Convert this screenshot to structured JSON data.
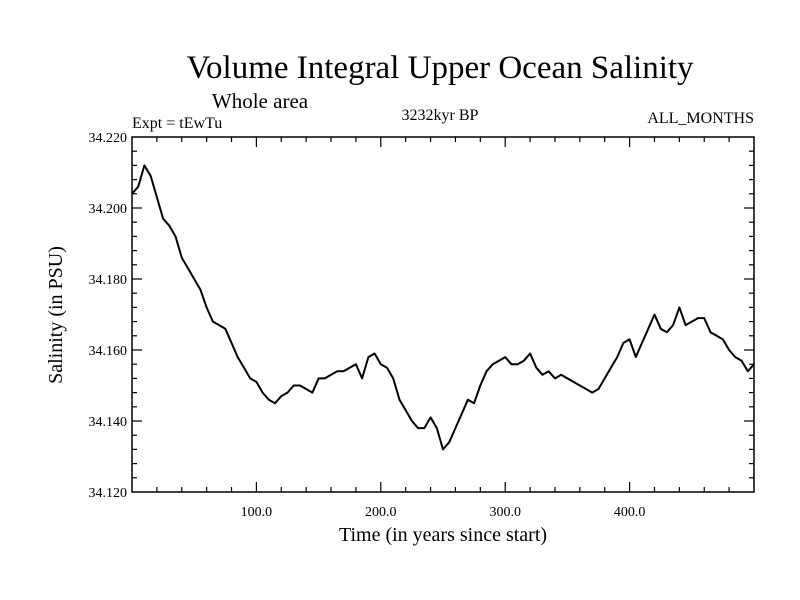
{
  "chart_data": {
    "type": "line",
    "title": "Volume Integral Upper Ocean Salinity",
    "subtitle": "Whole area",
    "experiment": "Expt = tEwTu",
    "period": "3232kyr BP",
    "months": "ALL_MONTHS",
    "xlabel": "Time (in years since start)",
    "ylabel": "Salinity (in PSU)",
    "xlim": [
      0,
      500
    ],
    "ylim": [
      34.12,
      34.22
    ],
    "x_ticks": [
      100,
      200,
      300,
      400
    ],
    "x_tick_labels": [
      "100.0",
      "200.0",
      "300.0",
      "400.0"
    ],
    "y_ticks": [
      34.12,
      34.14,
      34.16,
      34.18,
      34.2,
      34.22
    ],
    "y_tick_labels": [
      "34.120",
      "34.140",
      "34.160",
      "34.180",
      "34.200",
      "34.220"
    ],
    "series": [
      {
        "name": "salinity",
        "x": [
          0,
          5,
          10,
          15,
          20,
          25,
          30,
          35,
          40,
          45,
          50,
          55,
          60,
          65,
          70,
          75,
          80,
          85,
          90,
          95,
          100,
          105,
          110,
          115,
          120,
          125,
          130,
          135,
          140,
          145,
          150,
          155,
          160,
          165,
          170,
          175,
          180,
          185,
          190,
          195,
          200,
          205,
          210,
          215,
          220,
          225,
          230,
          235,
          240,
          245,
          250,
          255,
          260,
          265,
          270,
          275,
          280,
          285,
          290,
          295,
          300,
          305,
          310,
          315,
          320,
          325,
          330,
          335,
          340,
          345,
          350,
          355,
          360,
          365,
          370,
          375,
          380,
          385,
          390,
          395,
          400,
          405,
          410,
          415,
          420,
          425,
          430,
          435,
          440,
          445,
          450,
          455,
          460,
          465,
          470,
          475,
          480,
          485,
          490,
          495,
          500
        ],
        "values": [
          34.204,
          34.206,
          34.212,
          34.209,
          34.203,
          34.197,
          34.195,
          34.192,
          34.186,
          34.183,
          34.18,
          34.177,
          34.172,
          34.168,
          34.167,
          34.166,
          34.162,
          34.158,
          34.155,
          34.152,
          34.151,
          34.148,
          34.146,
          34.145,
          34.147,
          34.148,
          34.15,
          34.15,
          34.149,
          34.148,
          34.152,
          34.152,
          34.153,
          34.154,
          34.154,
          34.155,
          34.156,
          34.152,
          34.158,
          34.159,
          34.156,
          34.155,
          34.152,
          34.146,
          34.143,
          34.14,
          34.138,
          34.138,
          34.141,
          34.138,
          34.132,
          34.134,
          34.138,
          34.142,
          34.146,
          34.145,
          34.15,
          34.154,
          34.156,
          34.157,
          34.158,
          34.156,
          34.156,
          34.157,
          34.159,
          34.155,
          34.153,
          34.154,
          34.152,
          34.153,
          34.152,
          34.151,
          34.15,
          34.149,
          34.148,
          34.149,
          34.152,
          34.155,
          34.158,
          34.162,
          34.163,
          34.158,
          34.162,
          34.166,
          34.17,
          34.166,
          34.165,
          34.167,
          34.172,
          34.167,
          34.168,
          34.169,
          34.169,
          34.165,
          34.164,
          34.163,
          34.16,
          34.158,
          34.157,
          34.154,
          34.156
        ]
      }
    ]
  }
}
